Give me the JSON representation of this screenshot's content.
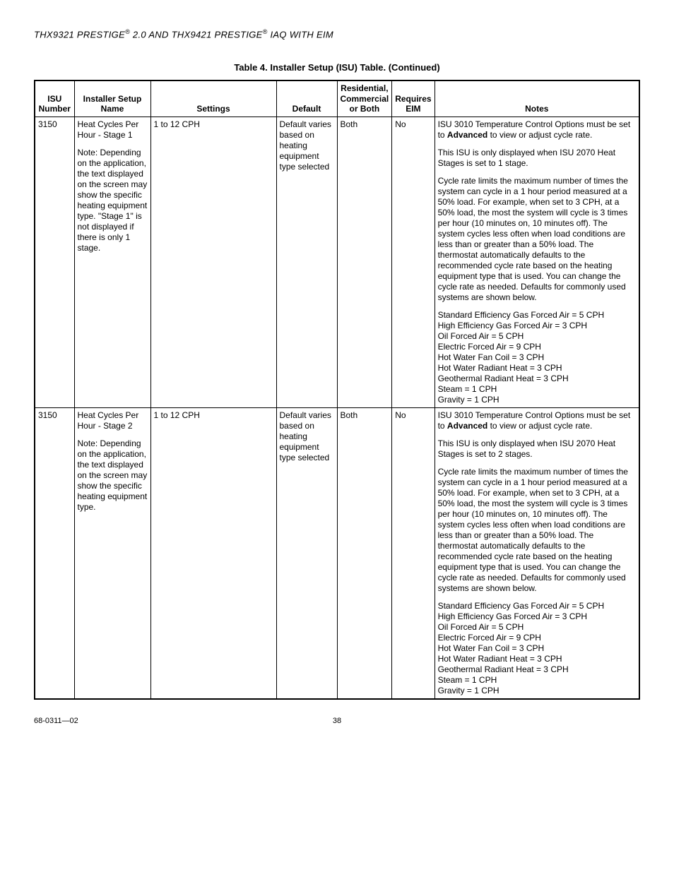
{
  "header": {
    "prefix": "THX9321 PRESTIGE",
    "reg1": "®",
    "mid": " 2.0 AND THX9421 PRESTIGE",
    "reg2": "®",
    "suffix": " IAQ WITH EIM"
  },
  "caption": "Table 4. Installer Setup (ISU) Table. (Continued)",
  "columns": {
    "isu": "ISU Number",
    "name": "Installer Setup Name",
    "settings": "Settings",
    "default": "Default",
    "rcb": "Residential, Commercial or Both",
    "eim": "Requires EIM",
    "notes": "Notes"
  },
  "rows": [
    {
      "isu": "3150",
      "name_p1": "Heat Cycles Per Hour - Stage 1",
      "name_p2": "Note: Depending on the application, the text displayed on the screen may show the specific heating equipment type. \"Stage 1\" is not displayed if there is only 1 stage.",
      "settings": "1 to 12 CPH",
      "default": "Default varies based on heating equipment type selected",
      "rcb": "Both",
      "eim": "No",
      "notes_p1a": "ISU 3010 Temperature Control Options must be set to ",
      "notes_p1b": "Advanced",
      "notes_p1c": " to view or adjust cycle rate.",
      "notes_p2": "This ISU is only displayed when ISU 2070 Heat Stages is set to 1 stage.",
      "notes_p3": "Cycle rate limits the maximum number of times the system can cycle in a 1 hour period measured at a 50% load. For example, when set to 3 CPH, at a 50% load, the most the system will cycle is 3 times per hour (10 minutes on, 10 minutes off). The system cycles less often when load conditions are less than or greater than a 50% load. The thermostat automatically defaults to the recommended cycle rate based on the heating equipment type that is used. You can change the cycle rate as needed. Defaults for commonly used systems are shown below.",
      "notes_l1": "Standard Efficiency Gas Forced Air = 5 CPH",
      "notes_l2": "High Efficiency Gas Forced Air = 3 CPH",
      "notes_l3": "Oil Forced Air = 5 CPH",
      "notes_l4": "Electric Forced Air = 9 CPH",
      "notes_l5": "Hot Water Fan Coil = 3 CPH",
      "notes_l6": "Hot Water Radiant Heat = 3 CPH",
      "notes_l7": "Geothermal Radiant Heat = 3 CPH",
      "notes_l8": "Steam = 1 CPH",
      "notes_l9": "Gravity = 1 CPH"
    },
    {
      "isu": "3150",
      "name_p1": "Heat Cycles Per Hour - Stage 2",
      "name_p2": "Note: Depending on the application, the text displayed on the screen may show the specific heating equipment type.",
      "settings": "1 to 12 CPH",
      "default": "Default varies based on heating equipment type selected",
      "rcb": "Both",
      "eim": "No",
      "notes_p1a": "ISU 3010 Temperature Control Options must be set to ",
      "notes_p1b": "Advanced",
      "notes_p1c": " to view or adjust cycle rate.",
      "notes_p2": "This ISU is only displayed when ISU 2070 Heat Stages is set to 2 stages.",
      "notes_p3": "Cycle rate limits the maximum number of times the system can cycle in a 1 hour period measured at a 50% load. For example, when set to 3 CPH, at a 50% load, the most the system will cycle is 3 times per hour (10 minutes on, 10 minutes off). The system cycles less often when load conditions are less than or greater than a 50% load. The thermostat automatically defaults to the recommended cycle rate based on the heating equipment type that is used. You can change the cycle rate as needed. Defaults for commonly used systems are shown below.",
      "notes_l1": "Standard Efficiency Gas Forced Air = 5 CPH",
      "notes_l2": "High Efficiency Gas Forced Air = 3 CPH",
      "notes_l3": "Oil Forced Air = 5 CPH",
      "notes_l4": "Electric Forced Air = 9 CPH",
      "notes_l5": "Hot Water Fan Coil = 3 CPH",
      "notes_l6": "Hot Water Radiant Heat = 3 CPH",
      "notes_l7": "Geothermal Radiant Heat = 3 CPH",
      "notes_l8": "Steam = 1 CPH",
      "notes_l9": "Gravity = 1 CPH"
    }
  ],
  "footer": {
    "doc": "68-0311—02",
    "page": "38"
  }
}
